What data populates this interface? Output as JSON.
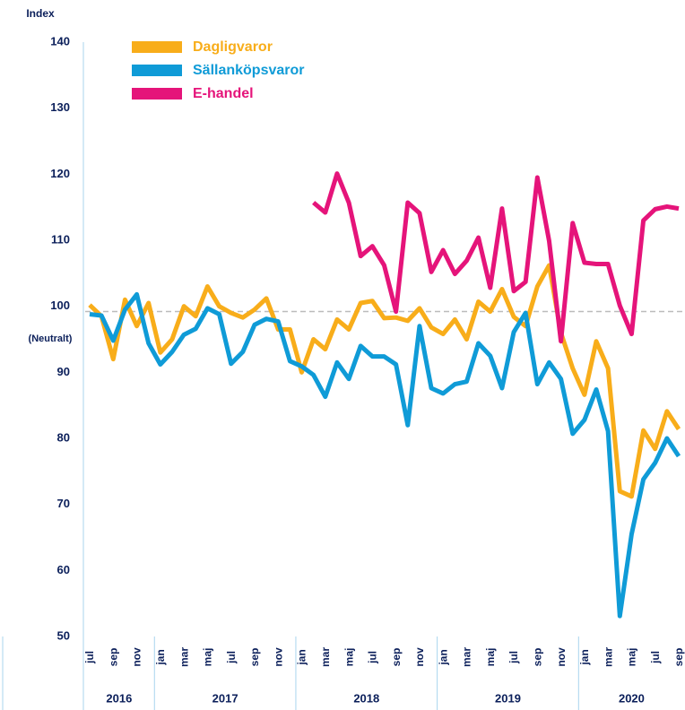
{
  "chart_data": {
    "type": "line",
    "y_axis_label": "Index",
    "annotation": "(Neutralt)",
    "categories": [
      "jul",
      null,
      "sep",
      null,
      "nov",
      null,
      "jan",
      null,
      "mar",
      null,
      "maj",
      null,
      "jul",
      null,
      "sep",
      null,
      "nov",
      null,
      "jan",
      null,
      "mar",
      null,
      "maj",
      null,
      "jul",
      null,
      "sep",
      null,
      "nov",
      null,
      "jan",
      null,
      "mar",
      null,
      "maj",
      null,
      "jul",
      null,
      "sep",
      null,
      "nov",
      null,
      "jan",
      null,
      "mar",
      null,
      "maj",
      null,
      "jul",
      null,
      "sep"
    ],
    "years": [
      "2016",
      "2017",
      "2018",
      "2019",
      "2020"
    ],
    "series": [
      {
        "name": "Dagligvaror",
        "color": "#f8ad1a",
        "values": [
          100.2,
          98.5,
          92,
          101,
          97,
          100.5,
          93,
          95,
          100,
          98.5,
          103,
          100,
          99,
          98.3,
          99.5,
          101.2,
          96.5,
          96.5,
          90,
          95,
          93.5,
          98,
          96.5,
          100.5,
          100.8,
          98.2,
          98.3,
          97.8,
          99.7,
          96.8,
          95.8,
          98,
          95,
          100.7,
          99.2,
          102.6,
          98.4,
          97,
          103,
          106.2,
          96,
          90.6,
          86.6,
          94.7,
          90.6,
          72,
          71.2,
          81.2,
          78.4,
          84.1,
          81.4
        ]
      },
      {
        "name": "Sällanköpsvaror",
        "color": "#0f9bd7",
        "values": [
          98.8,
          98.6,
          94.8,
          99.5,
          101.8,
          94.4,
          91.2,
          93.1,
          95.7,
          96.6,
          99.7,
          98.8,
          91.3,
          93.1,
          97.2,
          98.1,
          97.7,
          91.7,
          90.9,
          89.6,
          86.3,
          91.5,
          89,
          94,
          92.4,
          92.4,
          91.2,
          82,
          97,
          87.6,
          86.8,
          88.2,
          88.6,
          94.4,
          92.5,
          87.6,
          96.1,
          99,
          88.2,
          91.5,
          89,
          80.7,
          82.8,
          87.4,
          81.1,
          53.1,
          65.5,
          73.8,
          76.3,
          80,
          77.3
        ]
      },
      {
        "name": "E-handel",
        "color": "#e5147a",
        "values": [
          null,
          null,
          null,
          null,
          null,
          null,
          null,
          null,
          null,
          null,
          null,
          null,
          null,
          null,
          null,
          null,
          null,
          null,
          null,
          115.7,
          114.2,
          120.1,
          115.7,
          107.6,
          109.1,
          106.2,
          99.2,
          115.7,
          114.1,
          105.2,
          108.5,
          104.9,
          106.9,
          110.4,
          102.8,
          114.8,
          102.3,
          103.7,
          119.5,
          109.9,
          94.7,
          112.6,
          106.6,
          106.4,
          106.4,
          100.1,
          95.8,
          113,
          114.7,
          115.1,
          114.8
        ]
      }
    ],
    "reference_line": 99.2,
    "ylim": [
      50,
      140
    ],
    "yticks": [
      50,
      60,
      70,
      80,
      90,
      100,
      110,
      120,
      130,
      140
    ]
  }
}
